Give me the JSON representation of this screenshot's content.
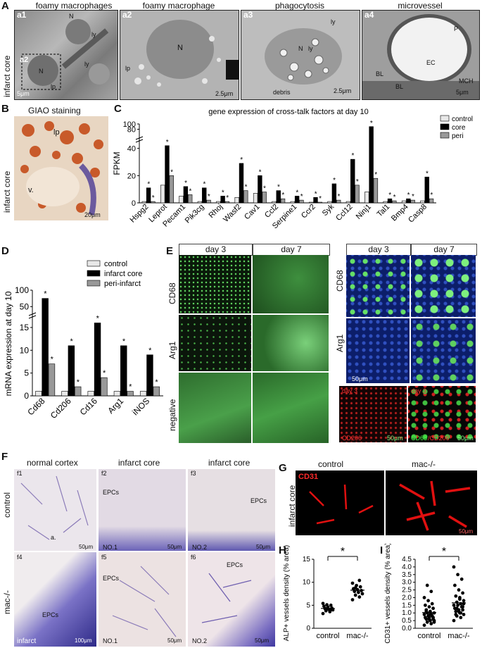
{
  "panel_labels": {
    "A": "A",
    "B": "B",
    "C": "C",
    "D": "D",
    "E": "E",
    "F": "F",
    "G": "G",
    "H": "H",
    "I": "I"
  },
  "panel_a": {
    "row_label": "infarct core",
    "tiles": [
      {
        "id": "a1",
        "title": "foamy macrophages",
        "labels": [
          "N",
          "N",
          "ly",
          "ly",
          "a2",
          "lp"
        ],
        "scale": "5μm"
      },
      {
        "id": "a2",
        "title": "foamy macrophage",
        "labels": [
          "N",
          "lp"
        ],
        "scale": "2.5μm"
      },
      {
        "id": "a3",
        "title": "phagocytosis",
        "labels": [
          "ly",
          "N",
          "ly",
          "debris"
        ],
        "scale": "2.5μm"
      },
      {
        "id": "a4",
        "title": "microvessel",
        "labels": [
          "P",
          "EC",
          "BL",
          "BL",
          "MCH"
        ],
        "scale": "5μm"
      }
    ]
  },
  "panel_b": {
    "title": "GIAO staining",
    "row_label": "infarct core",
    "labels": [
      "lp",
      "v."
    ],
    "scale": "20μm"
  },
  "chart_data": [
    {
      "id": "C",
      "type": "bar",
      "title": "gene expression of cross-talk factors at day 10",
      "ylabel": "FPKM",
      "yticks": [
        "0",
        "20",
        "40",
        "80",
        "100"
      ],
      "categories": [
        "Hspg2",
        "Leprot",
        "Pecam1",
        "Pik3cg",
        "Rhoj",
        "Wasf2",
        "Cav1",
        "Ccl2",
        "Serpine1",
        "Ccr2",
        "Syk",
        "Ccl12",
        "Ninj1",
        "Tal1",
        "Bmp4",
        "Casp8"
      ],
      "series": [
        {
          "name": "control",
          "color": "#e8e8e8",
          "values": [
            1,
            13,
            5,
            1,
            1,
            4,
            7,
            1,
            1,
            0.5,
            1,
            1,
            8,
            1,
            1.5,
            1.5
          ]
        },
        {
          "name": "core",
          "color": "#000000",
          "values": [
            11,
            42,
            12,
            11,
            5,
            29,
            20,
            9,
            5,
            4,
            14,
            32,
            90,
            3,
            3,
            19
          ]
        },
        {
          "name": "peri",
          "color": "#999999",
          "values": [
            1,
            20,
            6,
            2,
            1,
            9,
            8,
            3,
            2,
            0.5,
            2,
            13,
            18,
            1.5,
            2,
            3
          ]
        }
      ],
      "break_axis": true,
      "significance": "*"
    },
    {
      "id": "D",
      "type": "bar",
      "ylabel": "mRNA expression at day 10",
      "yticks": [
        "0",
        "5",
        "10",
        "15",
        "50",
        "100"
      ],
      "categories": [
        "Cd68",
        "Cd206",
        "Cd16",
        "Arg1",
        "iNOS"
      ],
      "series": [
        {
          "name": "control",
          "color": "#e8e8e8",
          "values": [
            1,
            1,
            1,
            1,
            1
          ]
        },
        {
          "name": "infarct core",
          "color": "#000000",
          "values": [
            75,
            11,
            16,
            11,
            9
          ]
        },
        {
          "name": "peri-infarct",
          "color": "#999999",
          "values": [
            7,
            2,
            4,
            1,
            2
          ]
        }
      ],
      "break_axis": true,
      "significance": "*"
    },
    {
      "id": "H",
      "type": "scatter",
      "ylabel": "ALP+ vessels density (% area)",
      "yticks": [
        "0",
        "5",
        "10",
        "15"
      ],
      "categories": [
        "control",
        "mac-/-"
      ],
      "points": [
        {
          "group": "control",
          "values": [
            3.2,
            3.6,
            3.8,
            4.0,
            4.1,
            4.3,
            4.4,
            4.6,
            4.8,
            5.0,
            5.1,
            5.4,
            3.9,
            4.2
          ]
        },
        {
          "group": "mac-/-",
          "values": [
            6.2,
            6.8,
            7.2,
            7.5,
            7.8,
            8.0,
            8.2,
            8.4,
            8.6,
            9.0,
            9.3,
            9.8,
            10.4,
            8.8
          ]
        }
      ],
      "significance": "*"
    },
    {
      "id": "I",
      "type": "scatter",
      "ylabel": "CD31+ vessels density (% area)",
      "yticks": [
        "0.0",
        "0.5",
        "1.0",
        "1.5",
        "2.0",
        "2.5",
        "3.0",
        "3.5",
        "4.0",
        "4.5"
      ],
      "categories": [
        "control",
        "mac-/-"
      ],
      "points": [
        {
          "group": "control",
          "values": [
            0.2,
            0.3,
            0.4,
            0.5,
            0.5,
            0.6,
            0.6,
            0.7,
            0.7,
            0.8,
            0.8,
            0.9,
            0.9,
            1.0,
            1.0,
            1.1,
            1.2,
            1.3,
            1.4,
            1.5,
            1.6,
            1.8,
            2.0,
            2.4,
            2.8,
            0.4,
            0.9,
            1.1,
            0.7,
            0.6
          ]
        },
        {
          "group": "mac-/-",
          "values": [
            0.5,
            0.7,
            0.8,
            0.9,
            1.0,
            1.1,
            1.2,
            1.2,
            1.3,
            1.4,
            1.5,
            1.5,
            1.6,
            1.7,
            1.8,
            2.0,
            2.1,
            2.3,
            2.5,
            2.8,
            3.2,
            3.5,
            4.0,
            1.0,
            1.3,
            1.6,
            1.9,
            0.9,
            1.4,
            1.1
          ]
        }
      ],
      "significance": "*"
    }
  ],
  "panel_e": {
    "col_headers": [
      "day 3",
      "day 7"
    ],
    "row_labels": [
      "CD68",
      "Arg1",
      "negative"
    ],
    "right_headers": [
      "day 3",
      "day 7"
    ],
    "right_rows": [
      "CD68",
      "Arg1"
    ],
    "right_scale": "50μm",
    "bottom_labels": [
      "day 3",
      "CD206",
      "day 3",
      "CD68",
      "/CD206"
    ],
    "bottom_scale": "50μm"
  },
  "panel_f": {
    "col_titles": [
      "normal cortex",
      "infarct core",
      "infarct core"
    ],
    "row_labels": [
      "control",
      "mac-/-"
    ],
    "tiles": [
      {
        "id": "f1",
        "labels": [
          "a."
        ],
        "scale": "50μm"
      },
      {
        "id": "f2",
        "labels": [
          "EPCs",
          "NO.1"
        ],
        "scale": "50μm"
      },
      {
        "id": "f3",
        "labels": [
          "EPCs",
          "NO.2"
        ],
        "scale": "50μm"
      },
      {
        "id": "f4",
        "labels": [
          "EPCs",
          "infarct"
        ],
        "scale": "100μm"
      },
      {
        "id": "f5",
        "labels": [
          "EPCs",
          "NO.1"
        ],
        "scale": "50μm"
      },
      {
        "id": "f6",
        "labels": [
          "EPCs",
          "NO.2"
        ],
        "scale": "50μm"
      }
    ]
  },
  "panel_g": {
    "stain": "CD31",
    "col_titles": [
      "control",
      "mac-/-"
    ],
    "row_label": "infarct core",
    "scale": "50μm"
  }
}
